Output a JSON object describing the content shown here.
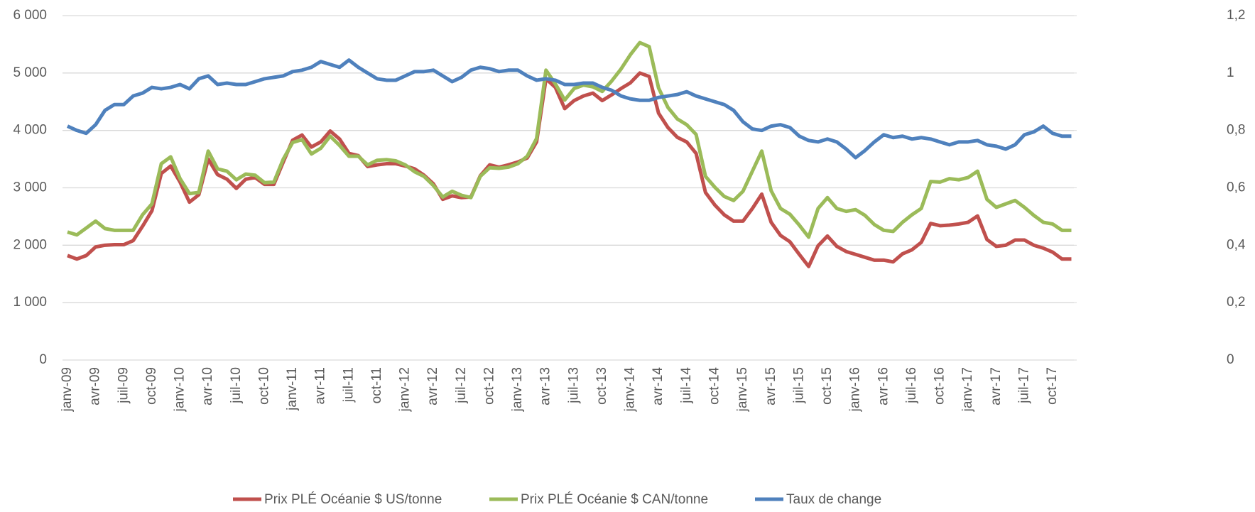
{
  "chart_data": {
    "type": "line",
    "categories": [
      "janv-09",
      null,
      null,
      "avr-09",
      null,
      null,
      "juil-09",
      null,
      null,
      "oct-09",
      null,
      null,
      "janv-10",
      null,
      null,
      "avr-10",
      null,
      null,
      "juil-10",
      null,
      null,
      "oct-10",
      null,
      null,
      "janv-11",
      null,
      null,
      "avr-11",
      null,
      null,
      "juil-11",
      null,
      null,
      "oct-11",
      null,
      null,
      "janv-12",
      null,
      null,
      "avr-12",
      null,
      null,
      "juil-12",
      null,
      null,
      "oct-12",
      null,
      null,
      "janv-13",
      null,
      null,
      "avr-13",
      null,
      null,
      "juil-13",
      null,
      null,
      "oct-13",
      null,
      null,
      "janv-14",
      null,
      null,
      "avr-14",
      null,
      null,
      "juil-14",
      null,
      null,
      "oct-14",
      null,
      null,
      "janv-15",
      null,
      null,
      "avr-15",
      null,
      null,
      "juil-15",
      null,
      null,
      "oct-15",
      null,
      null,
      "janv-16",
      null,
      null,
      "avr-16",
      null,
      null,
      "juil-16",
      null,
      null,
      "oct-16",
      null,
      null,
      "janv-17",
      null,
      null,
      "avr-17",
      null,
      null,
      "juil-17",
      null,
      null,
      "oct-17",
      null,
      null
    ],
    "series": [
      {
        "name": "Prix PLÉ Océanie $ US/tonne",
        "color": "#c0504d",
        "values": [
          1820,
          1760,
          1820,
          1970,
          2000,
          2010,
          2010,
          2080,
          2330,
          2600,
          3250,
          3380,
          3100,
          2750,
          2880,
          3500,
          3230,
          3150,
          2990,
          3150,
          3180,
          3060,
          3060,
          3450,
          3830,
          3920,
          3710,
          3800,
          3990,
          3850,
          3600,
          3560,
          3370,
          3400,
          3420,
          3420,
          3380,
          3330,
          3220,
          3070,
          2800,
          2860,
          2830,
          2840,
          3210,
          3400,
          3360,
          3400,
          3450,
          3520,
          3800,
          4900,
          4750,
          4380,
          4520,
          4600,
          4650,
          4520,
          4620,
          4730,
          4830,
          5000,
          4940,
          4300,
          4050,
          3880,
          3800,
          3600,
          2920,
          2700,
          2530,
          2420,
          2420,
          2640,
          2890,
          2400,
          2170,
          2060,
          1840,
          1630,
          1990,
          2160,
          1980,
          1890,
          1840,
          1790,
          1740,
          1740,
          1710,
          1850,
          1920,
          2050,
          2380,
          2340,
          2350,
          2370,
          2400,
          2510,
          2100,
          1980,
          2000,
          2090,
          2090,
          2000,
          1950,
          1880,
          1760,
          1760
        ]
      },
      {
        "name": "Prix PLÉ Océanie $ CAN/tonne",
        "color": "#9bbb59",
        "values": [
          2230,
          2180,
          2300,
          2420,
          2290,
          2260,
          2260,
          2260,
          2530,
          2720,
          3420,
          3540,
          3160,
          2900,
          2920,
          3640,
          3330,
          3290,
          3140,
          3240,
          3220,
          3090,
          3100,
          3500,
          3790,
          3840,
          3590,
          3690,
          3900,
          3740,
          3550,
          3550,
          3400,
          3480,
          3490,
          3470,
          3400,
          3280,
          3200,
          3040,
          2840,
          2940,
          2870,
          2830,
          3200,
          3350,
          3340,
          3360,
          3420,
          3550,
          3860,
          5050,
          4810,
          4530,
          4730,
          4790,
          4760,
          4680,
          4860,
          5070,
          5320,
          5530,
          5460,
          4740,
          4400,
          4200,
          4100,
          3930,
          3200,
          3010,
          2850,
          2780,
          2940,
          3290,
          3640,
          2950,
          2640,
          2540,
          2350,
          2140,
          2640,
          2830,
          2640,
          2590,
          2620,
          2520,
          2360,
          2260,
          2240,
          2400,
          2530,
          2640,
          3110,
          3100,
          3160,
          3140,
          3180,
          3290,
          2800,
          2660,
          2720,
          2780,
          2660,
          2520,
          2400,
          2370,
          2260,
          2260
        ]
      },
      {
        "name": "Taux de change",
        "color": "#4f81bd",
        "axis": "y2",
        "values": [
          0.815,
          0.8,
          0.79,
          0.82,
          0.87,
          0.89,
          0.89,
          0.92,
          0.93,
          0.95,
          0.945,
          0.95,
          0.96,
          0.945,
          0.98,
          0.99,
          0.96,
          0.965,
          0.96,
          0.96,
          0.97,
          0.98,
          0.985,
          0.99,
          1.005,
          1.01,
          1.02,
          1.04,
          1.03,
          1.02,
          1.045,
          1.02,
          1.0,
          0.98,
          0.975,
          0.975,
          0.99,
          1.005,
          1.005,
          1.01,
          0.99,
          0.97,
          0.985,
          1.01,
          1.02,
          1.015,
          1.005,
          1.01,
          1.01,
          0.99,
          0.975,
          0.98,
          0.975,
          0.96,
          0.96,
          0.965,
          0.965,
          0.95,
          0.94,
          0.92,
          0.91,
          0.905,
          0.905,
          0.915,
          0.92,
          0.925,
          0.935,
          0.92,
          0.91,
          0.9,
          0.89,
          0.87,
          0.83,
          0.805,
          0.8,
          0.815,
          0.82,
          0.81,
          0.78,
          0.765,
          0.76,
          0.77,
          0.76,
          0.735,
          0.705,
          0.73,
          0.76,
          0.785,
          0.775,
          0.78,
          0.77,
          0.775,
          0.77,
          0.76,
          0.75,
          0.76,
          0.76,
          0.765,
          0.75,
          0.745,
          0.735,
          0.75,
          0.785,
          0.795,
          0.815,
          0.79,
          0.78,
          0.78
        ]
      }
    ],
    "ylim": [
      0,
      6000
    ],
    "yticks": [
      0,
      {
        "value": 1000,
        "label": "1 000"
      },
      {
        "value": 2000,
        "label": "2 000"
      },
      {
        "value": 3000,
        "label": "3 000"
      },
      {
        "value": 4000,
        "label": "4 000"
      },
      {
        "value": 5000,
        "label": "5 000"
      },
      {
        "value": 6000,
        "label": "6 000"
      }
    ],
    "y2lim": [
      0,
      1.2
    ],
    "y2ticks": [
      0,
      {
        "value": 0.2,
        "label": "0,2"
      },
      {
        "value": 0.4,
        "label": "0,4"
      },
      {
        "value": 0.6,
        "label": "0,6"
      },
      {
        "value": 0.8,
        "label": "0,8"
      },
      1,
      {
        "value": 1.2,
        "label": "1,2"
      }
    ],
    "grid": true,
    "legend": "bottom"
  }
}
